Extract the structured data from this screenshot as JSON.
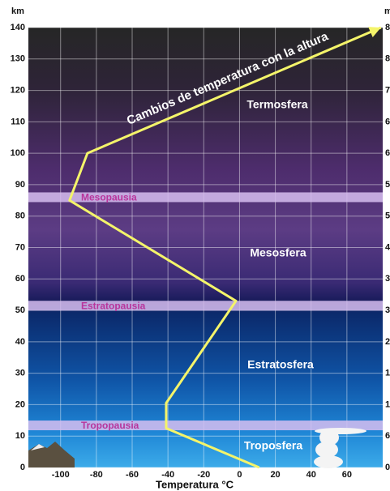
{
  "chart_data": {
    "type": "line",
    "x_label": "Temperatura °C",
    "y_label": "km",
    "y2_label": "m",
    "xlim": [
      -118,
      80
    ],
    "xticks": [
      -100,
      -80,
      -60,
      -40,
      -20,
      0,
      20,
      40,
      60
    ],
    "ylim": [
      0,
      140
    ],
    "yticks": [
      0,
      10,
      20,
      30,
      40,
      50,
      60,
      70,
      80,
      90,
      100,
      110,
      120,
      130,
      140
    ],
    "y2_labels": [
      "0",
      "6",
      "1",
      "1",
      "2",
      "3",
      "3",
      "4",
      "5",
      "5",
      "6",
      "6",
      "7",
      "8",
      "8"
    ],
    "grid": true,
    "x": [
      11,
      -41,
      -41,
      -2,
      -95,
      -85,
      79
    ],
    "values": [
      0,
      12.5,
      20.5,
      53,
      85,
      100,
      140
    ],
    "color": "#f4f46a",
    "line_label": "Cambios de temperatura con la altura",
    "boundaries": [
      {
        "label": "Mesopausia",
        "value": 86
      },
      {
        "label": "Estratopausia",
        "value": 51.5
      },
      {
        "label": "Tropopausia",
        "value": 13.4
      }
    ],
    "layers": [
      "Termosfera",
      "Mesosfera",
      "Estratosfera",
      "Troposfera"
    ]
  }
}
